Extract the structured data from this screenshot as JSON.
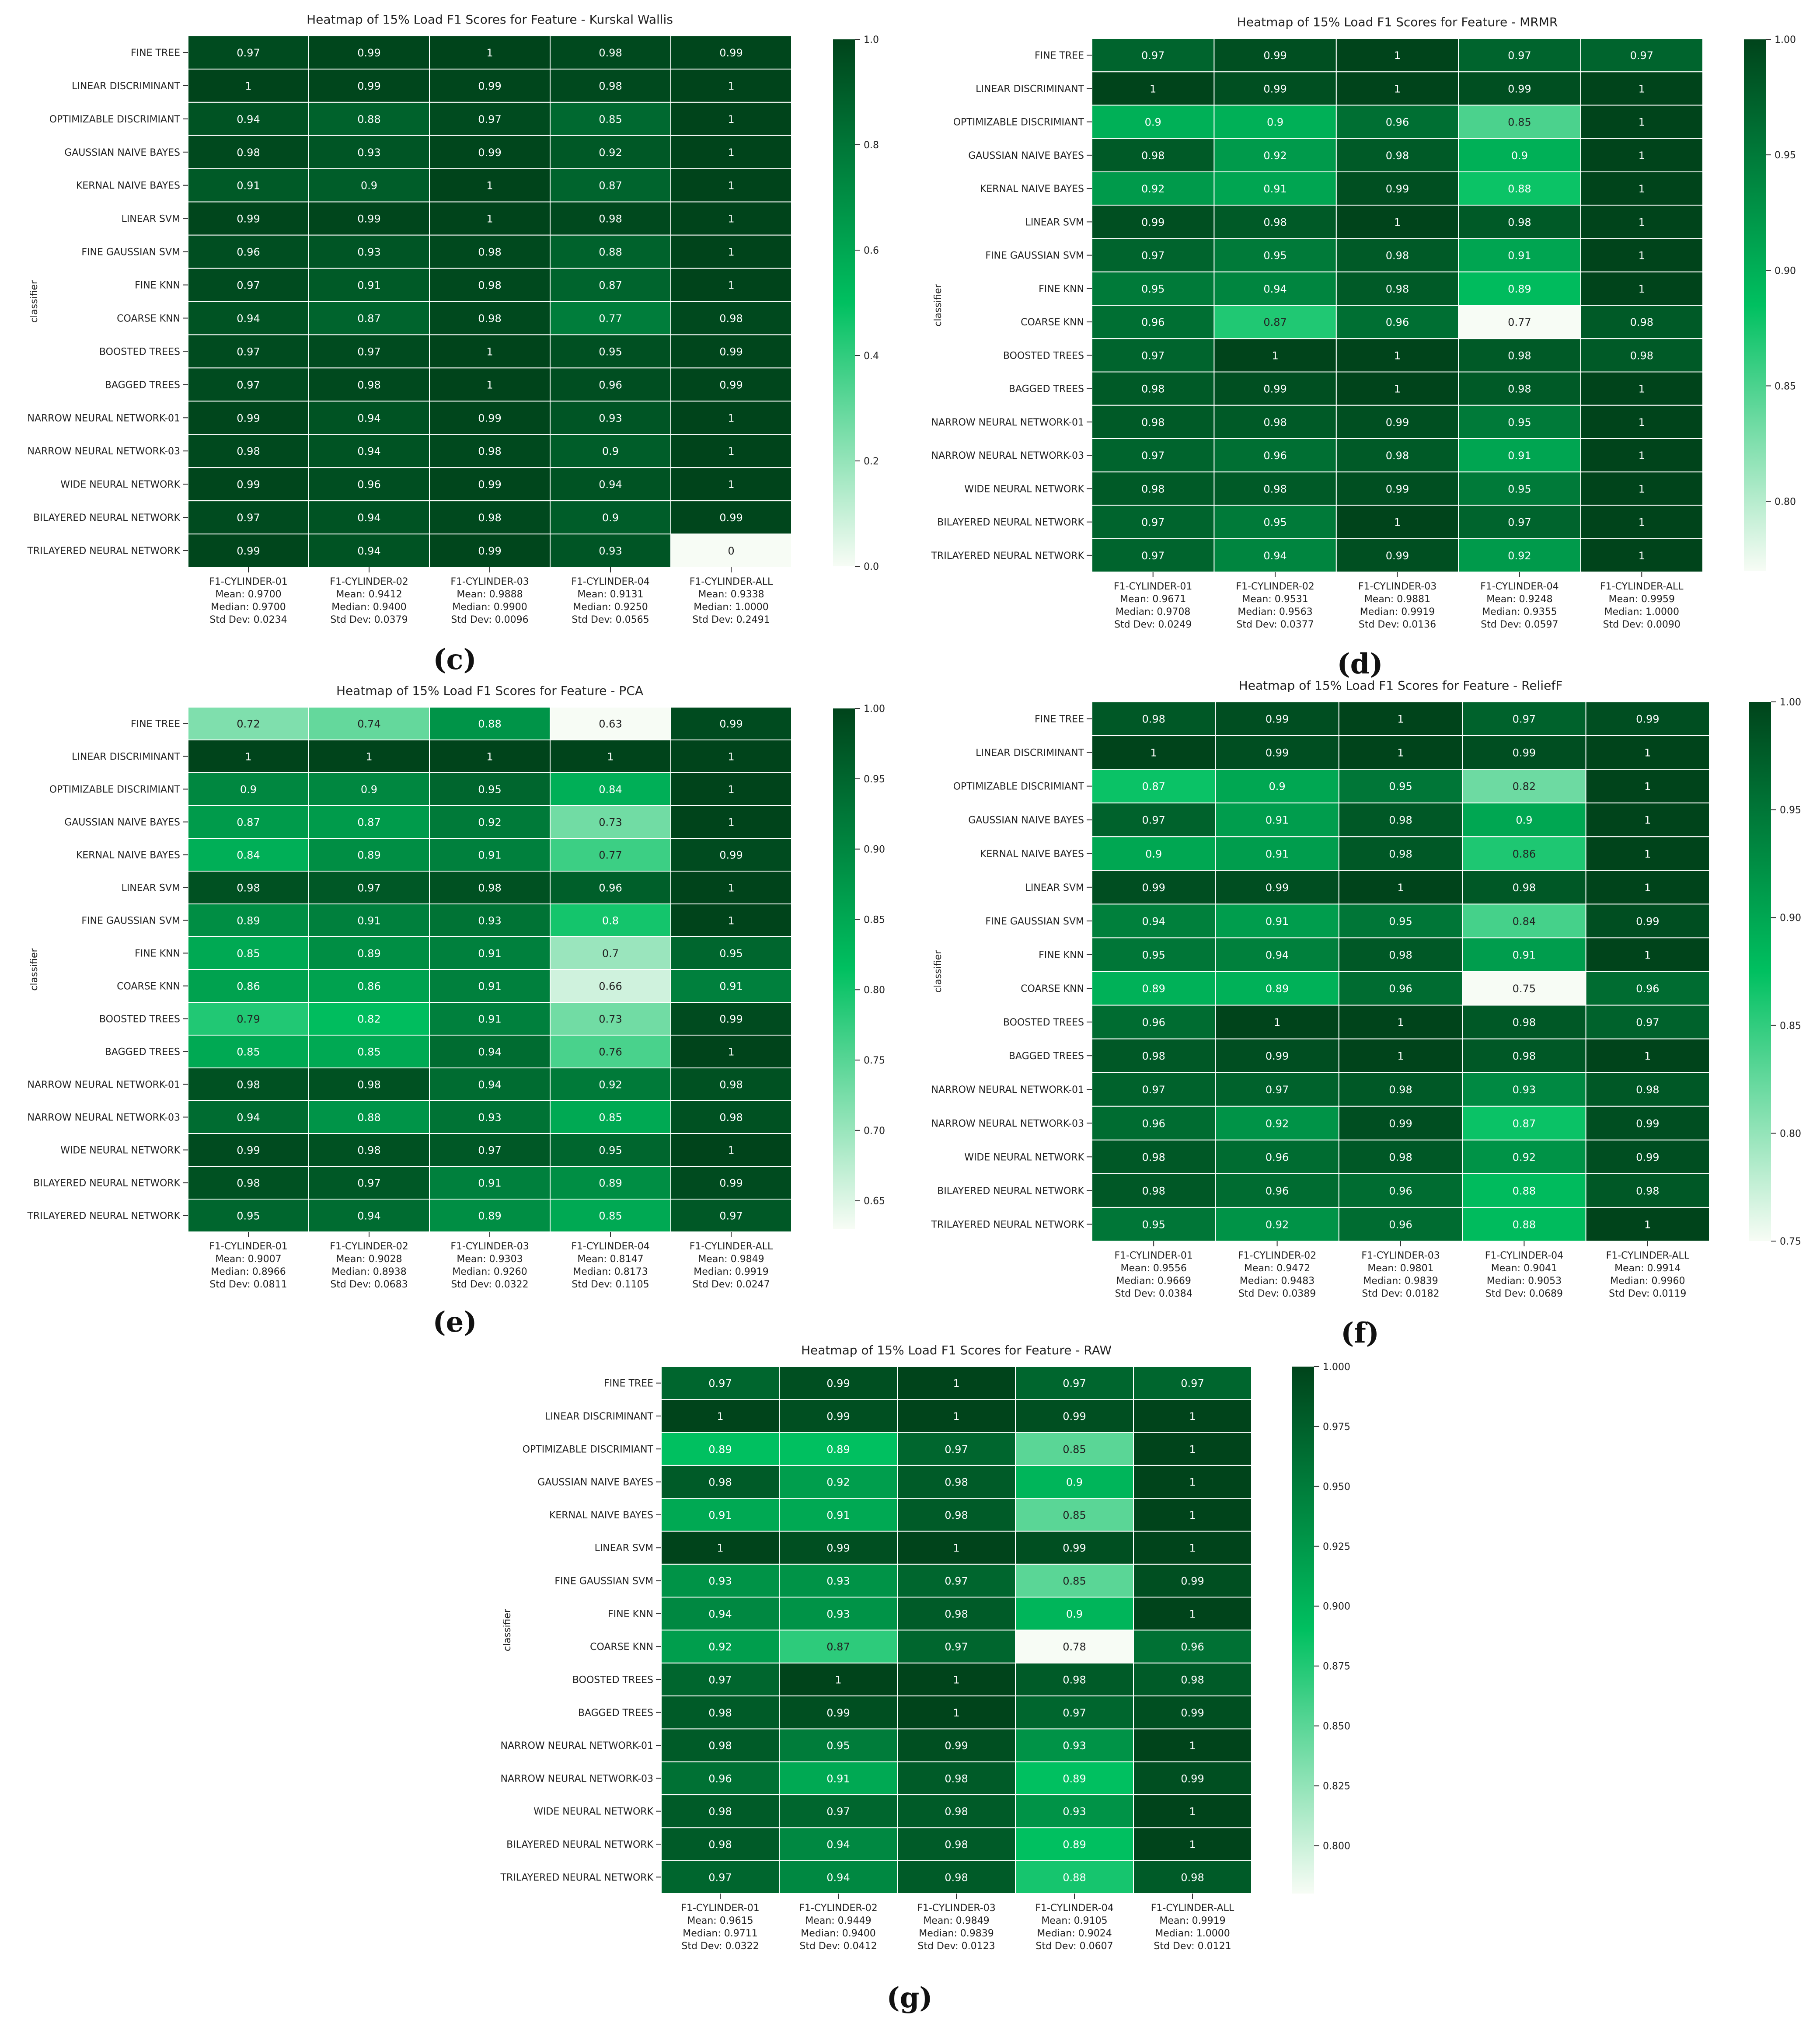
{
  "classifiers": [
    "FINE TREE",
    "LINEAR DISCRIMINANT",
    "OPTIMIZABLE DISCRIMIANT",
    "GAUSSIAN NAIVE BAYES",
    "KERNAL NAIVE BAYES",
    "LINEAR SVM",
    "FINE GAUSSIAN SVM",
    "FINE KNN",
    "COARSE KNN",
    "BOOSTED TREES",
    "BAGGED TREES",
    "NARROW NEURAL NETWORK-01",
    "NARROW NEURAL NETWORK-03",
    "WIDE NEURAL NETWORK",
    "BILAYERED NEURAL NETWORK",
    "TRILAYERED NEURAL NETWORK"
  ],
  "columns": [
    "F1-CYLINDER-01",
    "F1-CYLINDER-02",
    "F1-CYLINDER-03",
    "F1-CYLINDER-04",
    "F1-CYLINDER-ALL"
  ],
  "ylabel": "classifier",
  "palette": {
    "low": "#f7fcf5",
    "mid": "#00c060",
    "high": "#00441b"
  },
  "chart_data": [
    {
      "type": "heatmap",
      "panel_label": "(c)",
      "title": "Heatmap of 15% Load F1 Scores for Feature - Kurskal Wallis",
      "colorbar": {
        "min": 0.0,
        "max": 1.0,
        "ticks": [
          "0.0",
          "0.2",
          "0.4",
          "0.6",
          "0.8",
          "1.0"
        ]
      },
      "values": [
        [
          "0.97",
          "0.99",
          "1",
          "0.98",
          "0.99"
        ],
        [
          "1",
          "0.99",
          "0.99",
          "0.98",
          "1"
        ],
        [
          "0.94",
          "0.88",
          "0.97",
          "0.85",
          "1"
        ],
        [
          "0.98",
          "0.93",
          "0.99",
          "0.92",
          "1"
        ],
        [
          "0.91",
          "0.9",
          "1",
          "0.87",
          "1"
        ],
        [
          "0.99",
          "0.99",
          "1",
          "0.98",
          "1"
        ],
        [
          "0.96",
          "0.93",
          "0.98",
          "0.88",
          "1"
        ],
        [
          "0.97",
          "0.91",
          "0.98",
          "0.87",
          "1"
        ],
        [
          "0.94",
          "0.87",
          "0.98",
          "0.77",
          "0.98"
        ],
        [
          "0.97",
          "0.97",
          "1",
          "0.95",
          "0.99"
        ],
        [
          "0.97",
          "0.98",
          "1",
          "0.96",
          "0.99"
        ],
        [
          "0.99",
          "0.94",
          "0.99",
          "0.93",
          "1"
        ],
        [
          "0.98",
          "0.94",
          "0.98",
          "0.9",
          "1"
        ],
        [
          "0.99",
          "0.96",
          "0.99",
          "0.94",
          "1"
        ],
        [
          "0.97",
          "0.94",
          "0.98",
          "0.9",
          "0.99"
        ],
        [
          "0.99",
          "0.94",
          "0.99",
          "0.93",
          "0"
        ]
      ],
      "stats": [
        [
          "Mean: 0.9700",
          "Median: 0.9700",
          "Std Dev: 0.0234"
        ],
        [
          "Mean: 0.9412",
          "Median: 0.9400",
          "Std Dev: 0.0379"
        ],
        [
          "Mean: 0.9888",
          "Median: 0.9900",
          "Std Dev: 0.0096"
        ],
        [
          "Mean: 0.9131",
          "Median: 0.9250",
          "Std Dev: 0.0565"
        ],
        [
          "Mean: 0.9338",
          "Median: 1.0000",
          "Std Dev: 0.2491"
        ]
      ]
    },
    {
      "type": "heatmap",
      "panel_label": "(d)",
      "title": "Heatmap of 15% Load F1 Scores for Feature - MRMR",
      "colorbar": {
        "min": 0.77,
        "max": 1.0,
        "ticks": [
          "0.80",
          "0.85",
          "0.90",
          "0.95",
          "1.00"
        ]
      },
      "values": [
        [
          "0.97",
          "0.99",
          "1",
          "0.97",
          "0.97"
        ],
        [
          "1",
          "0.99",
          "1",
          "0.99",
          "1"
        ],
        [
          "0.9",
          "0.9",
          "0.96",
          "0.85",
          "1"
        ],
        [
          "0.98",
          "0.92",
          "0.98",
          "0.9",
          "1"
        ],
        [
          "0.92",
          "0.91",
          "0.99",
          "0.88",
          "1"
        ],
        [
          "0.99",
          "0.98",
          "1",
          "0.98",
          "1"
        ],
        [
          "0.97",
          "0.95",
          "0.98",
          "0.91",
          "1"
        ],
        [
          "0.95",
          "0.94",
          "0.98",
          "0.89",
          "1"
        ],
        [
          "0.96",
          "0.87",
          "0.96",
          "0.77",
          "0.98"
        ],
        [
          "0.97",
          "1",
          "1",
          "0.98",
          "0.98"
        ],
        [
          "0.98",
          "0.99",
          "1",
          "0.98",
          "1"
        ],
        [
          "0.98",
          "0.98",
          "0.99",
          "0.95",
          "1"
        ],
        [
          "0.97",
          "0.96",
          "0.98",
          "0.91",
          "1"
        ],
        [
          "0.98",
          "0.98",
          "0.99",
          "0.95",
          "1"
        ],
        [
          "0.97",
          "0.95",
          "1",
          "0.97",
          "1"
        ],
        [
          "0.97",
          "0.94",
          "0.99",
          "0.92",
          "1"
        ]
      ],
      "stats": [
        [
          "Mean: 0.9671",
          "Median: 0.9708",
          "Std Dev: 0.0249"
        ],
        [
          "Mean: 0.9531",
          "Median: 0.9563",
          "Std Dev: 0.0377"
        ],
        [
          "Mean: 0.9881",
          "Median: 0.9919",
          "Std Dev: 0.0136"
        ],
        [
          "Mean: 0.9248",
          "Median: 0.9355",
          "Std Dev: 0.0597"
        ],
        [
          "Mean: 0.9959",
          "Median: 1.0000",
          "Std Dev: 0.0090"
        ]
      ]
    },
    {
      "type": "heatmap",
      "panel_label": "(e)",
      "title": "Heatmap of 15% Load F1 Scores for Feature - PCA",
      "colorbar": {
        "min": 0.63,
        "max": 1.0,
        "ticks": [
          "0.65",
          "0.70",
          "0.75",
          "0.80",
          "0.85",
          "0.90",
          "0.95",
          "1.00"
        ]
      },
      "values": [
        [
          "0.72",
          "0.74",
          "0.88",
          "0.63",
          "0.99"
        ],
        [
          "1",
          "1",
          "1",
          "1",
          "1"
        ],
        [
          "0.9",
          "0.9",
          "0.95",
          "0.84",
          "1"
        ],
        [
          "0.87",
          "0.87",
          "0.92",
          "0.73",
          "1"
        ],
        [
          "0.84",
          "0.89",
          "0.91",
          "0.77",
          "0.99"
        ],
        [
          "0.98",
          "0.97",
          "0.98",
          "0.96",
          "1"
        ],
        [
          "0.89",
          "0.91",
          "0.93",
          "0.8",
          "1"
        ],
        [
          "0.85",
          "0.89",
          "0.91",
          "0.7",
          "0.95"
        ],
        [
          "0.86",
          "0.86",
          "0.91",
          "0.66",
          "0.91"
        ],
        [
          "0.79",
          "0.82",
          "0.91",
          "0.73",
          "0.99"
        ],
        [
          "0.85",
          "0.85",
          "0.94",
          "0.76",
          "1"
        ],
        [
          "0.98",
          "0.98",
          "0.94",
          "0.92",
          "0.98"
        ],
        [
          "0.94",
          "0.88",
          "0.93",
          "0.85",
          "0.98"
        ],
        [
          "0.99",
          "0.98",
          "0.97",
          "0.95",
          "1"
        ],
        [
          "0.98",
          "0.97",
          "0.91",
          "0.89",
          "0.99"
        ],
        [
          "0.95",
          "0.94",
          "0.89",
          "0.85",
          "0.97"
        ]
      ],
      "stats": [
        [
          "Mean: 0.9007",
          "Median: 0.8966",
          "Std Dev: 0.0811"
        ],
        [
          "Mean: 0.9028",
          "Median: 0.8938",
          "Std Dev: 0.0683"
        ],
        [
          "Mean: 0.9303",
          "Median: 0.9260",
          "Std Dev: 0.0322"
        ],
        [
          "Mean: 0.8147",
          "Median: 0.8173",
          "Std Dev: 0.1105"
        ],
        [
          "Mean: 0.9849",
          "Median: 0.9919",
          "Std Dev: 0.0247"
        ]
      ]
    },
    {
      "type": "heatmap",
      "panel_label": "(f)",
      "title": "Heatmap of 15% Load F1 Scores for Feature - ReliefF",
      "colorbar": {
        "min": 0.75,
        "max": 1.0,
        "ticks": [
          "0.75",
          "0.80",
          "0.85",
          "0.90",
          "0.95",
          "1.00"
        ]
      },
      "values": [
        [
          "0.98",
          "0.99",
          "1",
          "0.97",
          "0.99"
        ],
        [
          "1",
          "0.99",
          "1",
          "0.99",
          "1"
        ],
        [
          "0.87",
          "0.9",
          "0.95",
          "0.82",
          "1"
        ],
        [
          "0.97",
          "0.91",
          "0.98",
          "0.9",
          "1"
        ],
        [
          "0.9",
          "0.91",
          "0.98",
          "0.86",
          "1"
        ],
        [
          "0.99",
          "0.99",
          "1",
          "0.98",
          "1"
        ],
        [
          "0.94",
          "0.91",
          "0.95",
          "0.84",
          "0.99"
        ],
        [
          "0.95",
          "0.94",
          "0.98",
          "0.91",
          "1"
        ],
        [
          "0.89",
          "0.89",
          "0.96",
          "0.75",
          "0.96"
        ],
        [
          "0.96",
          "1",
          "1",
          "0.98",
          "0.97"
        ],
        [
          "0.98",
          "0.99",
          "1",
          "0.98",
          "1"
        ],
        [
          "0.97",
          "0.97",
          "0.98",
          "0.93",
          "0.98"
        ],
        [
          "0.96",
          "0.92",
          "0.99",
          "0.87",
          "0.99"
        ],
        [
          "0.98",
          "0.96",
          "0.98",
          "0.92",
          "0.99"
        ],
        [
          "0.98",
          "0.96",
          "0.96",
          "0.88",
          "0.98"
        ],
        [
          "0.95",
          "0.92",
          "0.96",
          "0.88",
          "1"
        ]
      ],
      "stats": [
        [
          "Mean: 0.9556",
          "Median: 0.9669",
          "Std Dev: 0.0384"
        ],
        [
          "Mean: 0.9472",
          "Median: 0.9483",
          "Std Dev: 0.0389"
        ],
        [
          "Mean: 0.9801",
          "Median: 0.9839",
          "Std Dev: 0.0182"
        ],
        [
          "Mean: 0.9041",
          "Median: 0.9053",
          "Std Dev: 0.0689"
        ],
        [
          "Mean: 0.9914",
          "Median: 0.9960",
          "Std Dev: 0.0119"
        ]
      ]
    },
    {
      "type": "heatmap",
      "panel_label": "(g)",
      "title": "Heatmap of 15% Load F1 Scores for Feature - RAW",
      "colorbar": {
        "min": 0.78,
        "max": 1.0,
        "ticks": [
          "0.800",
          "0.825",
          "0.850",
          "0.875",
          "0.900",
          "0.925",
          "0.950",
          "0.975",
          "1.000"
        ]
      },
      "values": [
        [
          "0.97",
          "0.99",
          "1",
          "0.97",
          "0.97"
        ],
        [
          "1",
          "0.99",
          "1",
          "0.99",
          "1"
        ],
        [
          "0.89",
          "0.89",
          "0.97",
          "0.85",
          "1"
        ],
        [
          "0.98",
          "0.92",
          "0.98",
          "0.9",
          "1"
        ],
        [
          "0.91",
          "0.91",
          "0.98",
          "0.85",
          "1"
        ],
        [
          "1",
          "0.99",
          "1",
          "0.99",
          "1"
        ],
        [
          "0.93",
          "0.93",
          "0.97",
          "0.85",
          "0.99"
        ],
        [
          "0.94",
          "0.93",
          "0.98",
          "0.9",
          "1"
        ],
        [
          "0.92",
          "0.87",
          "0.97",
          "0.78",
          "0.96"
        ],
        [
          "0.97",
          "1",
          "1",
          "0.98",
          "0.98"
        ],
        [
          "0.98",
          "0.99",
          "1",
          "0.97",
          "0.99"
        ],
        [
          "0.98",
          "0.95",
          "0.99",
          "0.93",
          "1"
        ],
        [
          "0.96",
          "0.91",
          "0.98",
          "0.89",
          "0.99"
        ],
        [
          "0.98",
          "0.97",
          "0.98",
          "0.93",
          "1"
        ],
        [
          "0.98",
          "0.94",
          "0.98",
          "0.89",
          "1"
        ],
        [
          "0.97",
          "0.94",
          "0.98",
          "0.88",
          "0.98"
        ]
      ],
      "stats": [
        [
          "Mean: 0.9615",
          "Median: 0.9711",
          "Std Dev: 0.0322"
        ],
        [
          "Mean: 0.9449",
          "Median: 0.9400",
          "Std Dev: 0.0412"
        ],
        [
          "Mean: 0.9849",
          "Median: 0.9839",
          "Std Dev: 0.0123"
        ],
        [
          "Mean: 0.9105",
          "Median: 0.9024",
          "Std Dev: 0.0607"
        ],
        [
          "Mean: 0.9919",
          "Median: 1.0000",
          "Std Dev: 0.0121"
        ]
      ]
    }
  ]
}
